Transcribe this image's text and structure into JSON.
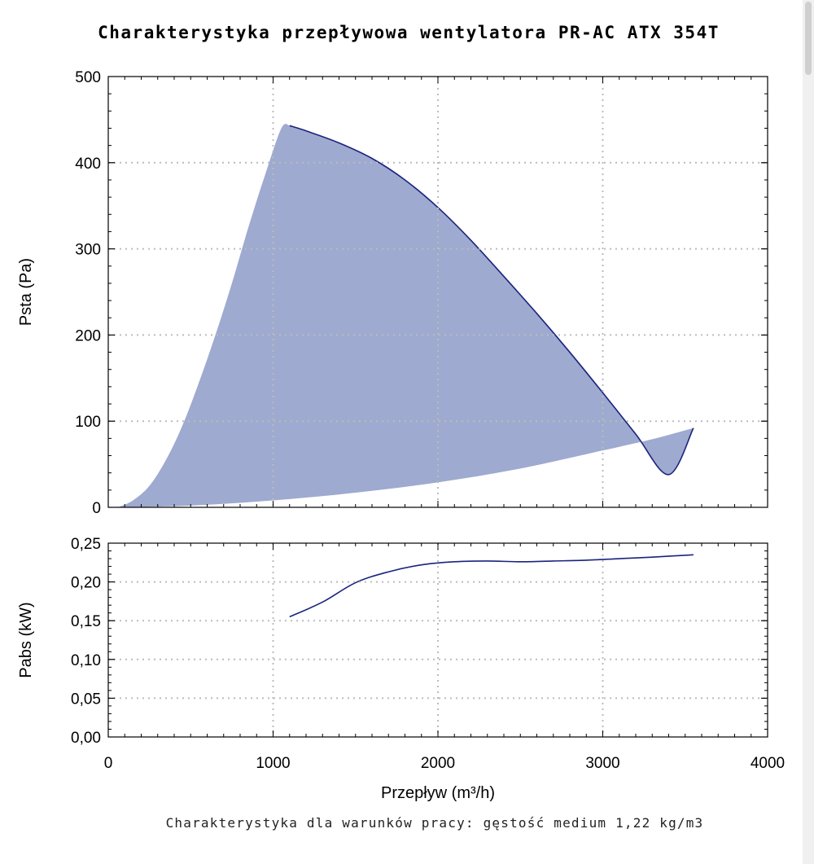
{
  "chart_data": [
    {
      "type": "area",
      "title": "Charakterystyka przepływowa wentylatora PR-AC ATX 354T",
      "ylabel": "Psta (Pa)",
      "xlabel": "",
      "xlim": [
        0,
        4000
      ],
      "ylim": [
        0,
        500
      ],
      "x_ticks": [
        "0",
        "1000",
        "2000",
        "3000",
        "4000"
      ],
      "y_ticks": [
        "0",
        "100",
        "200",
        "300",
        "400",
        "500"
      ],
      "grid": true,
      "fill_color": "#9eaacf",
      "line_color": "#1a237e",
      "series": [
        {
          "role": "lower-left-boundary",
          "x": [
            60,
            150,
            250,
            350,
            450,
            550,
            650,
            750,
            850,
            950,
            1050,
            1100
          ],
          "y": [
            0,
            8,
            25,
            55,
            95,
            145,
            200,
            260,
            325,
            385,
            440,
            443
          ]
        },
        {
          "role": "max-curve",
          "x": [
            1100,
            1200,
            1400,
            1600,
            1800,
            2000,
            2200,
            2400,
            2600,
            2800,
            3000,
            3200,
            3400,
            3550
          ],
          "y": [
            443,
            437,
            423,
            405,
            380,
            348,
            310,
            268,
            225,
            180,
            133,
            85,
            38,
            92
          ]
        },
        {
          "role": "lower-boundary",
          "x": [
            60,
            500,
            1000,
            1500,
            2000,
            2500,
            3000,
            3300,
            3550
          ],
          "y": [
            0,
            2,
            8,
            17,
            29,
            45,
            66,
            79,
            92
          ]
        }
      ]
    },
    {
      "type": "line",
      "title": "",
      "ylabel": "Pabs (kW)",
      "xlabel": "Przepływ (m³/h)",
      "xlim": [
        0,
        4000
      ],
      "ylim": [
        0,
        0.25
      ],
      "x_ticks": [
        "0",
        "1000",
        "2000",
        "3000",
        "4000"
      ],
      "y_ticks": [
        "0,00",
        "0,05",
        "0,10",
        "0,15",
        "0,20",
        "0,25"
      ],
      "grid": true,
      "line_color": "#1a237e",
      "series": [
        {
          "x": [
            1100,
            1300,
            1500,
            1700,
            1900,
            2100,
            2300,
            2500,
            2700,
            2900,
            3100,
            3300,
            3550
          ],
          "y": [
            0.155,
            0.174,
            0.199,
            0.213,
            0.222,
            0.226,
            0.227,
            0.226,
            0.227,
            0.228,
            0.23,
            0.232,
            0.235
          ]
        }
      ]
    }
  ],
  "note": "Charakterystyka dla warunków pracy: gęstość medium 1,22 kg/m3"
}
